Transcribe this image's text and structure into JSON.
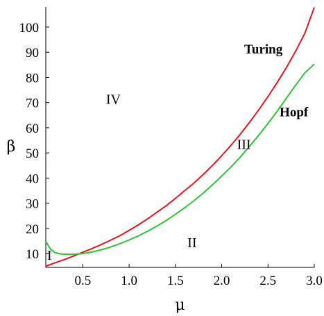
{
  "chart_data": {
    "type": "line",
    "xlabel": "μ",
    "ylabel": "β",
    "xlim": [
      0.1,
      3.0
    ],
    "ylim": [
      4.5,
      108
    ],
    "x_ticks": [
      0.5,
      1.0,
      1.5,
      2.0,
      2.5,
      3.0
    ],
    "x_tick_labels": [
      "0.5",
      "1.0",
      "1.5",
      "2.0",
      "2.5",
      "3.0"
    ],
    "y_ticks": [
      10,
      20,
      30,
      40,
      50,
      60,
      70,
      80,
      90,
      100
    ],
    "y_tick_labels": [
      "10",
      "20",
      "30",
      "40",
      "50",
      "60",
      "70",
      "80",
      "90",
      "100"
    ],
    "grid": false,
    "series": [
      {
        "name": "Turing",
        "color": "#e8141b",
        "x": [
          0.1,
          0.2,
          0.3,
          0.4,
          0.5,
          0.6,
          0.7,
          0.8,
          0.9,
          1.0,
          1.1,
          1.2,
          1.3,
          1.4,
          1.5,
          1.6,
          1.7,
          1.8,
          1.9,
          2.0,
          2.1,
          2.2,
          2.3,
          2.4,
          2.5,
          2.6,
          2.7,
          2.8,
          2.9,
          3.0
        ],
        "values": [
          5.0,
          6.3,
          7.6,
          9.0,
          10.5,
          12.0,
          13.6,
          15.3,
          17.1,
          19.2,
          21.4,
          23.8,
          26.4,
          29.0,
          31.9,
          35.0,
          38.0,
          41.4,
          45.0,
          48.9,
          53.0,
          57.4,
          62.1,
          67.1,
          72.4,
          78.0,
          84.0,
          90.5,
          97.7,
          107.8
        ]
      },
      {
        "name": "Hopf",
        "color": "#2dc436",
        "x": [
          0.1,
          0.15,
          0.2,
          0.25,
          0.3,
          0.4,
          0.5,
          0.6,
          0.7,
          0.8,
          0.9,
          1.0,
          1.1,
          1.2,
          1.3,
          1.4,
          1.5,
          1.6,
          1.7,
          1.8,
          1.9,
          2.0,
          2.1,
          2.2,
          2.3,
          2.4,
          2.5,
          2.6,
          2.7,
          2.8,
          2.9,
          3.0
        ],
        "values": [
          14.8,
          11.8,
          10.4,
          9.9,
          9.7,
          9.7,
          10.0,
          10.6,
          11.5,
          12.6,
          13.9,
          15.4,
          17.0,
          18.9,
          20.9,
          23.1,
          25.6,
          28.2,
          31.0,
          34.0,
          37.3,
          40.8,
          44.4,
          48.3,
          52.6,
          57.0,
          61.7,
          66.6,
          71.8,
          77.0,
          81.9,
          85.3
        ]
      }
    ],
    "annotations": [
      {
        "text": "I",
        "x": 0.14,
        "y": 7.5
      },
      {
        "text": "II",
        "x": 1.68,
        "y": 12.5
      },
      {
        "text": "III",
        "x": 2.24,
        "y": 51.5
      },
      {
        "text": "IV",
        "x": 0.83,
        "y": 69.5
      },
      {
        "text": "Turing",
        "x": 2.45,
        "y": 89.5
      },
      {
        "text": "Hopf",
        "x": 2.78,
        "y": 64.5
      }
    ]
  }
}
